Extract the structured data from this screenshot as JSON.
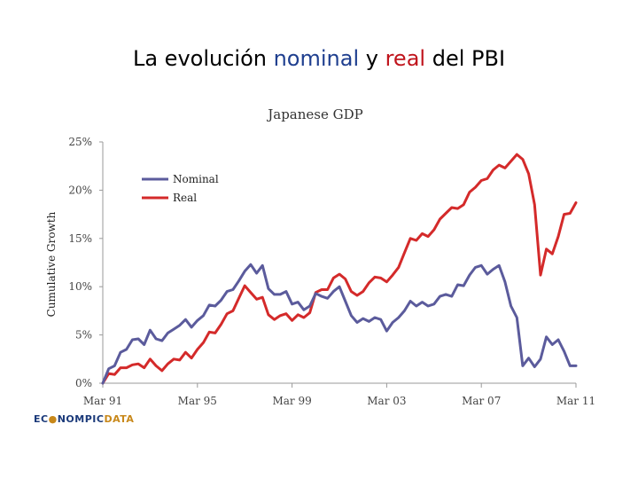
{
  "slide": {
    "title_part1": "La evolución ",
    "title_nominal": "nominal",
    "title_part2": " y ",
    "title_real": "real",
    "title_part3": " del PBI"
  },
  "logo": {
    "part1": "EC",
    "part2": "NOMPIC",
    "part3": "DATA"
  },
  "colors": {
    "nominal": "#5b5b9c",
    "real": "#d42a2a",
    "title_nominal": "#1f3f8f",
    "title_real": "#c0141c"
  },
  "chart_data": {
    "type": "line",
    "title": "Japanese GDP",
    "xlabel": "",
    "ylabel": "Cumulative Growth",
    "ylim": [
      0,
      25
    ],
    "xlim": [
      0,
      20
    ],
    "yticks": [
      0,
      5,
      10,
      15,
      20,
      25
    ],
    "ytick_labels": [
      "0%",
      "5%",
      "10%",
      "15%",
      "20%",
      "25%"
    ],
    "xticks": [
      0,
      4,
      8,
      12,
      16,
      20
    ],
    "xtick_labels": [
      "Mar 91",
      "Mar 95",
      "Mar 99",
      "Mar 03",
      "Mar 07",
      "Mar 11"
    ],
    "legend": [
      "Nominal",
      "Real"
    ],
    "legend_position": "top-left",
    "series": [
      {
        "name": "Nominal",
        "color": "#5b5b9c",
        "x": [
          0,
          0.25,
          0.5,
          0.75,
          1,
          1.25,
          1.5,
          1.75,
          2,
          2.25,
          2.5,
          2.75,
          3,
          3.25,
          3.5,
          3.75,
          4,
          4.25,
          4.5,
          4.75,
          5,
          5.25,
          5.5,
          5.75,
          6,
          6.25,
          6.5,
          6.75,
          7,
          7.25,
          7.5,
          7.75,
          8,
          8.25,
          8.5,
          8.75,
          9,
          9.25,
          9.5,
          9.75,
          10,
          10.25,
          10.5,
          10.75,
          11,
          11.25,
          11.5,
          11.75,
          12,
          12.25,
          12.5,
          12.75,
          13,
          13.25,
          13.5,
          13.75,
          14,
          14.25,
          14.5,
          14.75,
          15,
          15.25,
          15.5,
          15.75,
          16,
          16.25,
          16.5,
          16.75,
          17,
          17.25,
          17.5,
          17.75,
          18,
          18.25,
          18.5,
          18.75,
          19,
          19.25,
          19.5,
          19.75,
          20
        ],
        "values": [
          0,
          1.5,
          1.8,
          3.2,
          3.5,
          4.5,
          4.6,
          4.0,
          5.5,
          4.6,
          4.4,
          5.2,
          5.6,
          6.0,
          6.6,
          5.8,
          6.5,
          7.0,
          8.1,
          8.0,
          8.6,
          9.5,
          9.7,
          10.6,
          11.6,
          12.3,
          11.4,
          12.2,
          9.8,
          9.2,
          9.2,
          9.5,
          8.2,
          8.4,
          7.6,
          8.0,
          9.3,
          9.0,
          8.8,
          9.5,
          10.0,
          8.5,
          7.0,
          6.3,
          6.7,
          6.4,
          6.8,
          6.6,
          5.4,
          6.3,
          6.8,
          7.5,
          8.5,
          8.0,
          8.4,
          8.0,
          8.2,
          9.0,
          9.2,
          9.0,
          10.2,
          10.1,
          11.2,
          12.0,
          12.2,
          11.3,
          11.8,
          12.2,
          10.5,
          8.0,
          6.8,
          1.8,
          2.6,
          1.7,
          2.5,
          4.8,
          4.0,
          4.5,
          3.3,
          1.8,
          1.8
        ]
      },
      {
        "name": "Real",
        "color": "#d42a2a",
        "x": [
          0,
          0.25,
          0.5,
          0.75,
          1,
          1.25,
          1.5,
          1.75,
          2,
          2.25,
          2.5,
          2.75,
          3,
          3.25,
          3.5,
          3.75,
          4,
          4.25,
          4.5,
          4.75,
          5,
          5.25,
          5.5,
          5.75,
          6,
          6.25,
          6.5,
          6.75,
          7,
          7.25,
          7.5,
          7.75,
          8,
          8.25,
          8.5,
          8.75,
          9,
          9.25,
          9.5,
          9.75,
          10,
          10.25,
          10.5,
          10.75,
          11,
          11.25,
          11.5,
          11.75,
          12,
          12.25,
          12.5,
          12.75,
          13,
          13.25,
          13.5,
          13.75,
          14,
          14.25,
          14.5,
          14.75,
          15,
          15.25,
          15.5,
          15.75,
          16,
          16.25,
          16.5,
          16.75,
          17,
          17.25,
          17.5,
          17.75,
          18,
          18.25,
          18.5,
          18.75,
          19,
          19.25,
          19.5,
          19.75,
          20
        ],
        "values": [
          0,
          1.0,
          0.9,
          1.6,
          1.6,
          1.9,
          2.0,
          1.6,
          2.5,
          1.8,
          1.3,
          2.0,
          2.5,
          2.4,
          3.2,
          2.6,
          3.5,
          4.2,
          5.3,
          5.2,
          6.1,
          7.2,
          7.5,
          8.8,
          10.1,
          9.4,
          8.7,
          8.9,
          7.1,
          6.6,
          7.0,
          7.2,
          6.5,
          7.1,
          6.8,
          7.3,
          9.4,
          9.7,
          9.7,
          10.9,
          11.3,
          10.8,
          9.5,
          9.1,
          9.5,
          10.4,
          11.0,
          10.9,
          10.5,
          11.2,
          12.0,
          13.5,
          15.0,
          14.8,
          15.5,
          15.2,
          15.9,
          17.0,
          17.6,
          18.2,
          18.1,
          18.5,
          19.8,
          20.3,
          21.0,
          21.2,
          22.1,
          22.6,
          22.3,
          23.0,
          23.7,
          23.2,
          21.7,
          18.5,
          11.2,
          13.9,
          13.4,
          15.2,
          17.5,
          17.6,
          18.7
        ]
      }
    ]
  }
}
